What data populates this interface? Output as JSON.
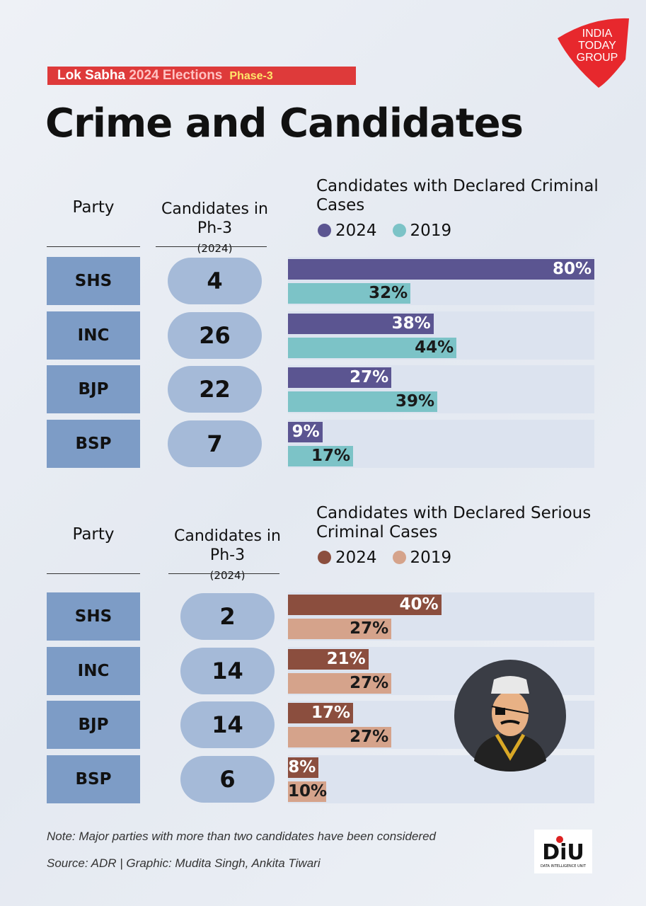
{
  "header": {
    "banner_a": "Lok Sabha",
    "banner_b": "2024 Elections",
    "banner_c": "Phase-3",
    "title": "Crime and Candidates",
    "logo": "INDIA TODAY GROUP"
  },
  "colors": {
    "criminal_2024": "#5b5591",
    "criminal_2019": "#7cc3c7",
    "serious_2024": "#8b4e3e",
    "serious_2019": "#d5a38b",
    "party_box": "#7d9cc6",
    "pill": "#a5bad8",
    "track": "#dce3ef",
    "banner": "#de3a3a"
  },
  "chart_data": [
    {
      "type": "bar",
      "orientation": "horizontal",
      "title": "Candidates with Declared Criminal Cases",
      "col_party": "Party",
      "col_candidates": "Candidates in Ph-3",
      "col_candidates_sub": "(2024)",
      "categories": [
        "SHS",
        "INC",
        "BJP",
        "BSP"
      ],
      "candidates": [
        "4",
        "26",
        "22",
        "7"
      ],
      "xlim": [
        0,
        80
      ],
      "series": [
        {
          "name": "2024",
          "values": [
            80,
            38,
            27,
            9
          ],
          "labels": [
            "80%",
            "38%",
            "27%",
            "9%"
          ]
        },
        {
          "name": "2019",
          "values": [
            32,
            44,
            39,
            17
          ],
          "labels": [
            "32%",
            "44%",
            "39%",
            "17%"
          ]
        }
      ]
    },
    {
      "type": "bar",
      "orientation": "horizontal",
      "title": "Candidates with Declared Serious Criminal Cases",
      "col_party": "Party",
      "col_candidates": "Candidates in Ph-3",
      "col_candidates_sub": "(2024)",
      "categories": [
        "SHS",
        "INC",
        "BJP",
        "BSP"
      ],
      "candidates": [
        "2",
        "14",
        "14",
        "6"
      ],
      "xlim": [
        0,
        80
      ],
      "series": [
        {
          "name": "2024",
          "values": [
            40,
            21,
            17,
            8
          ],
          "labels": [
            "40%",
            "21%",
            "17%",
            "8%"
          ]
        },
        {
          "name": "2019",
          "values": [
            27,
            27,
            27,
            10
          ],
          "labels": [
            "27%",
            "27%",
            "27%",
            "10%"
          ]
        }
      ]
    }
  ],
  "footer": {
    "note": "Note: Major parties with more than two candidates have been considered",
    "source": "Source: ADR | Graphic: Mudita Singh, Ankita Tiwari",
    "diu_logo": "DIU DATA INTELLIGENCE UNIT"
  }
}
